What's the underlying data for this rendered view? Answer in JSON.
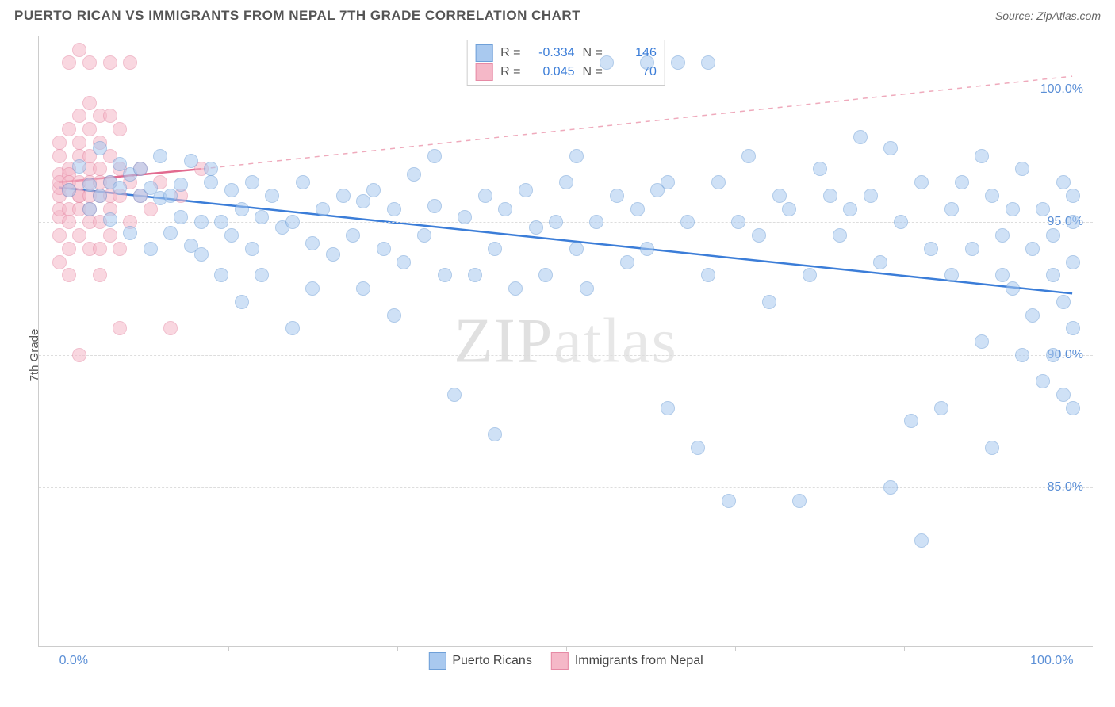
{
  "header": {
    "title": "PUERTO RICAN VS IMMIGRANTS FROM NEPAL 7TH GRADE CORRELATION CHART",
    "source": "Source: ZipAtlas.com"
  },
  "axes": {
    "y_label": "7th Grade",
    "y_ticks": [
      {
        "value": 85.0,
        "label": "85.0%"
      },
      {
        "value": 90.0,
        "label": "90.0%"
      },
      {
        "value": 95.0,
        "label": "95.0%"
      },
      {
        "value": 100.0,
        "label": "100.0%"
      }
    ],
    "y_domain": [
      79,
      102
    ],
    "x_ticks": [
      {
        "value": 0,
        "label": "0.0%",
        "align": "left"
      },
      {
        "value": 100,
        "label": "100.0%",
        "align": "right"
      }
    ],
    "x_minor_ticks": [
      16.67,
      33.33,
      50,
      66.67,
      83.33
    ],
    "x_domain": [
      -2,
      102
    ]
  },
  "watermark": {
    "part1": "ZIP",
    "part2": "atlas"
  },
  "series": [
    {
      "id": "puerto_ricans",
      "label": "Puerto Ricans",
      "fill_color": "#a9c9ef",
      "stroke_color": "#6fa0d8",
      "fill_opacity": 0.55,
      "marker_radius": 9,
      "trend": {
        "x1": 0,
        "y1": 96.3,
        "x2": 100,
        "y2": 92.3,
        "color": "#3b7dd8",
        "width": 2.5,
        "dash": "none",
        "extend_dash": false
      },
      "stats": {
        "R": "-0.334",
        "N": "146"
      },
      "points": [
        [
          1,
          96.2
        ],
        [
          2,
          97.1
        ],
        [
          3,
          95.5
        ],
        [
          3,
          96.4
        ],
        [
          4,
          96.0
        ],
        [
          4,
          97.8
        ],
        [
          5,
          96.5
        ],
        [
          5,
          95.1
        ],
        [
          6,
          96.3
        ],
        [
          6,
          97.2
        ],
        [
          7,
          94.6
        ],
        [
          7,
          96.8
        ],
        [
          8,
          96.0
        ],
        [
          8,
          97.0
        ],
        [
          9,
          94.0
        ],
        [
          9,
          96.3
        ],
        [
          10,
          95.9
        ],
        [
          10,
          97.5
        ],
        [
          11,
          94.6
        ],
        [
          11,
          96.0
        ],
        [
          12,
          95.2
        ],
        [
          12,
          96.4
        ],
        [
          13,
          94.1
        ],
        [
          13,
          97.3
        ],
        [
          14,
          95.0
        ],
        [
          14,
          93.8
        ],
        [
          15,
          96.5
        ],
        [
          15,
          97.0
        ],
        [
          16,
          93.0
        ],
        [
          16,
          95.0
        ],
        [
          17,
          94.5
        ],
        [
          17,
          96.2
        ],
        [
          18,
          92.0
        ],
        [
          18,
          95.5
        ],
        [
          19,
          94.0
        ],
        [
          19,
          96.5
        ],
        [
          20,
          95.2
        ],
        [
          20,
          93.0
        ],
        [
          21,
          96.0
        ],
        [
          22,
          94.8
        ],
        [
          23,
          91.0
        ],
        [
          23,
          95.0
        ],
        [
          24,
          96.5
        ],
        [
          25,
          94.2
        ],
        [
          25,
          92.5
        ],
        [
          26,
          95.5
        ],
        [
          27,
          93.8
        ],
        [
          28,
          96.0
        ],
        [
          29,
          94.5
        ],
        [
          30,
          92.5
        ],
        [
          30,
          95.8
        ],
        [
          31,
          96.2
        ],
        [
          32,
          94.0
        ],
        [
          33,
          91.5
        ],
        [
          33,
          95.5
        ],
        [
          34,
          93.5
        ],
        [
          35,
          96.8
        ],
        [
          36,
          94.5
        ],
        [
          37,
          95.6
        ],
        [
          37,
          97.5
        ],
        [
          38,
          93.0
        ],
        [
          39,
          88.5
        ],
        [
          40,
          95.2
        ],
        [
          41,
          93.0
        ],
        [
          42,
          96.0
        ],
        [
          43,
          94.0
        ],
        [
          43,
          87.0
        ],
        [
          44,
          95.5
        ],
        [
          45,
          92.5
        ],
        [
          46,
          96.2
        ],
        [
          47,
          94.8
        ],
        [
          48,
          93.0
        ],
        [
          49,
          95.0
        ],
        [
          50,
          96.5
        ],
        [
          51,
          97.5
        ],
        [
          51,
          94.0
        ],
        [
          52,
          92.5
        ],
        [
          53,
          95.0
        ],
        [
          54,
          101.0
        ],
        [
          55,
          96.0
        ],
        [
          56,
          93.5
        ],
        [
          57,
          95.5
        ],
        [
          58,
          101.0
        ],
        [
          58,
          94.0
        ],
        [
          59,
          96.2
        ],
        [
          60,
          88.0
        ],
        [
          60,
          96.5
        ],
        [
          61,
          101.0
        ],
        [
          62,
          95.0
        ],
        [
          63,
          86.5
        ],
        [
          64,
          93.0
        ],
        [
          64,
          101.0
        ],
        [
          65,
          96.5
        ],
        [
          66,
          84.5
        ],
        [
          67,
          95.0
        ],
        [
          68,
          97.5
        ],
        [
          69,
          94.5
        ],
        [
          70,
          92.0
        ],
        [
          71,
          96.0
        ],
        [
          72,
          95.5
        ],
        [
          73,
          84.5
        ],
        [
          74,
          93.0
        ],
        [
          75,
          97.0
        ],
        [
          76,
          96.0
        ],
        [
          77,
          94.5
        ],
        [
          78,
          95.5
        ],
        [
          79,
          98.2
        ],
        [
          80,
          96.0
        ],
        [
          81,
          93.5
        ],
        [
          82,
          97.8
        ],
        [
          82,
          85.0
        ],
        [
          83,
          95.0
        ],
        [
          84,
          87.5
        ],
        [
          85,
          83.0
        ],
        [
          85,
          96.5
        ],
        [
          86,
          94.0
        ],
        [
          87,
          88.0
        ],
        [
          88,
          95.5
        ],
        [
          88,
          93.0
        ],
        [
          89,
          96.5
        ],
        [
          90,
          94.0
        ],
        [
          91,
          90.5
        ],
        [
          91,
          97.5
        ],
        [
          92,
          96.0
        ],
        [
          92,
          86.5
        ],
        [
          93,
          94.5
        ],
        [
          93,
          93.0
        ],
        [
          94,
          95.5
        ],
        [
          94,
          92.5
        ],
        [
          95,
          97.0
        ],
        [
          95,
          90.0
        ],
        [
          96,
          94.0
        ],
        [
          96,
          91.5
        ],
        [
          97,
          95.5
        ],
        [
          97,
          89.0
        ],
        [
          98,
          93.0
        ],
        [
          98,
          90.0
        ],
        [
          98,
          94.5
        ],
        [
          99,
          92.0
        ],
        [
          99,
          96.5
        ],
        [
          99,
          88.5
        ],
        [
          100,
          93.5
        ],
        [
          100,
          91.0
        ],
        [
          100,
          95.0
        ],
        [
          100,
          88.0
        ],
        [
          100,
          96.0
        ]
      ]
    },
    {
      "id": "immigrants_nepal",
      "label": "Immigrants from Nepal",
      "fill_color": "#f5b8c8",
      "stroke_color": "#e68aa5",
      "fill_opacity": 0.55,
      "marker_radius": 9,
      "trend": {
        "x1": 0,
        "y1": 96.5,
        "x2": 14,
        "y2": 97.0,
        "color": "#e26a8f",
        "width": 2.5,
        "dash": "none",
        "extend_dash": true,
        "extend_x2": 100,
        "extend_y2": 100.5,
        "extend_color": "#efaabc"
      },
      "stats": {
        "R": "0.045",
        "N": "70"
      },
      "points": [
        [
          0,
          96.0
        ],
        [
          0,
          96.8
        ],
        [
          0,
          95.2
        ],
        [
          0,
          97.5
        ],
        [
          0,
          94.5
        ],
        [
          0,
          96.3
        ],
        [
          0,
          98.0
        ],
        [
          0,
          95.5
        ],
        [
          0,
          93.5
        ],
        [
          0,
          96.5
        ],
        [
          1,
          97.0
        ],
        [
          1,
          95.5
        ],
        [
          1,
          96.2
        ],
        [
          1,
          98.5
        ],
        [
          1,
          94.0
        ],
        [
          1,
          96.8
        ],
        [
          1,
          95.0
        ],
        [
          1,
          93.0
        ],
        [
          1,
          96.5
        ],
        [
          1,
          101.0
        ],
        [
          2,
          96.0
        ],
        [
          2,
          97.5
        ],
        [
          2,
          94.5
        ],
        [
          2,
          99.0
        ],
        [
          2,
          95.5
        ],
        [
          2,
          96.5
        ],
        [
          2,
          98.0
        ],
        [
          2,
          90.0
        ],
        [
          2,
          96.0
        ],
        [
          2,
          101.5
        ],
        [
          3,
          97.0
        ],
        [
          3,
          95.0
        ],
        [
          3,
          99.5
        ],
        [
          3,
          96.5
        ],
        [
          3,
          94.0
        ],
        [
          3,
          97.5
        ],
        [
          3,
          96.0
        ],
        [
          3,
          101.0
        ],
        [
          3,
          98.5
        ],
        [
          3,
          95.5
        ],
        [
          4,
          97.0
        ],
        [
          4,
          93.0
        ],
        [
          4,
          96.5
        ],
        [
          4,
          99.0
        ],
        [
          4,
          95.0
        ],
        [
          4,
          96.0
        ],
        [
          4,
          94.0
        ],
        [
          4,
          98.0
        ],
        [
          5,
          96.5
        ],
        [
          5,
          97.5
        ],
        [
          5,
          94.5
        ],
        [
          5,
          101.0
        ],
        [
          5,
          96.0
        ],
        [
          5,
          99.0
        ],
        [
          5,
          95.5
        ],
        [
          6,
          97.0
        ],
        [
          6,
          94.0
        ],
        [
          6,
          96.0
        ],
        [
          6,
          98.5
        ],
        [
          6,
          91.0
        ],
        [
          7,
          96.5
        ],
        [
          7,
          101.0
        ],
        [
          7,
          95.0
        ],
        [
          8,
          97.0
        ],
        [
          8,
          96.0
        ],
        [
          9,
          95.5
        ],
        [
          10,
          96.5
        ],
        [
          11,
          91.0
        ],
        [
          12,
          96.0
        ],
        [
          14,
          97.0
        ]
      ]
    }
  ],
  "legend_top": {
    "rows": [
      {
        "swatch_fill": "#a9c9ef",
        "swatch_stroke": "#6fa0d8",
        "r_label": "R =",
        "r_val": "-0.334",
        "n_label": "N =",
        "n_val": "146"
      },
      {
        "swatch_fill": "#f5b8c8",
        "swatch_stroke": "#e68aa5",
        "r_label": "R =",
        "r_val": "0.045",
        "n_label": "N =",
        "n_val": "70"
      }
    ]
  },
  "legend_bottom": {
    "items": [
      {
        "swatch_fill": "#a9c9ef",
        "swatch_stroke": "#6fa0d8",
        "label": "Puerto Ricans"
      },
      {
        "swatch_fill": "#f5b8c8",
        "swatch_stroke": "#e68aa5",
        "label": "Immigrants from Nepal"
      }
    ]
  }
}
